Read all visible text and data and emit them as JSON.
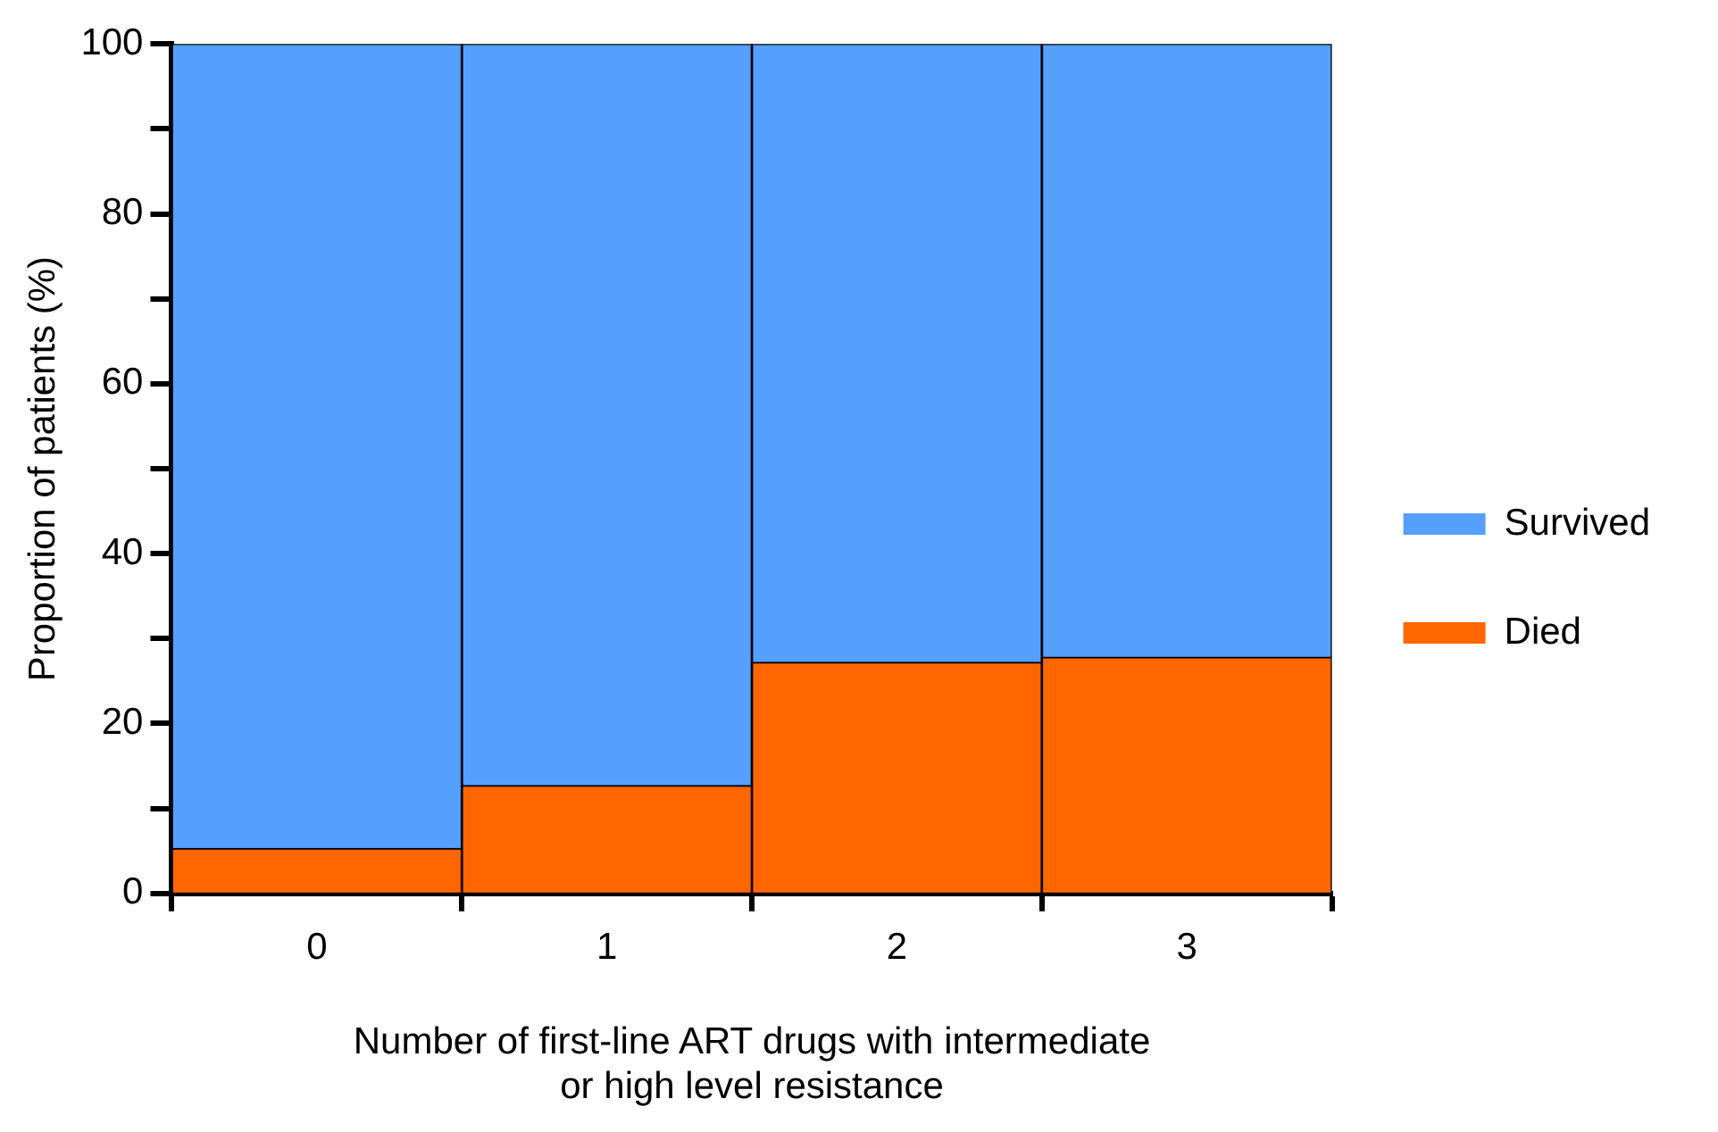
{
  "chart_data": {
    "type": "bar",
    "stacked": true,
    "xlabel": "Number of first-line ART drugs with intermediate or high level resistance",
    "ylabel": "Proportion of patients (%)",
    "categories": [
      "0",
      "1",
      "2",
      "3"
    ],
    "series": [
      {
        "name": "Died",
        "color": "#ff6600",
        "values": [
          5.3,
          12.7,
          27.2,
          27.8
        ]
      },
      {
        "name": "Survived",
        "color": "#559ffe",
        "values": [
          94.7,
          87.3,
          72.8,
          72.2
        ]
      }
    ],
    "ylim": [
      0,
      100
    ],
    "yticks": [
      0,
      {
        "value": 10,
        "label": null
      },
      20,
      {
        "value": 30,
        "label": null
      },
      40,
      {
        "value": 50,
        "label": null
      },
      60,
      {
        "value": 70,
        "label": null
      },
      80,
      {
        "value": 90,
        "label": null
      },
      100
    ],
    "grid": false,
    "legend": "right"
  }
}
